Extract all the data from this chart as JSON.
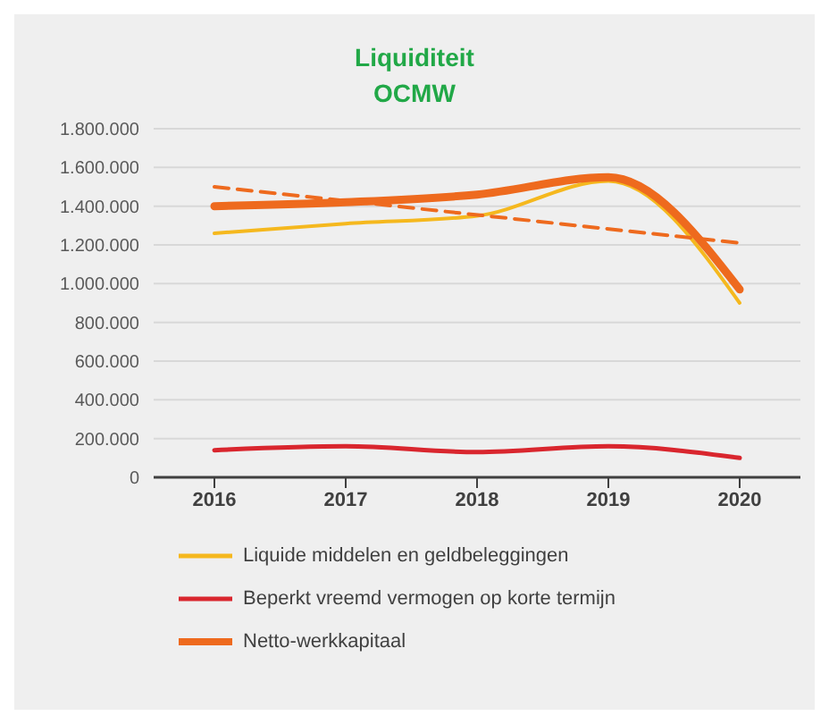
{
  "chart_data": {
    "type": "line",
    "title": "Liquiditeit OCMW",
    "categories": [
      "2016",
      "2017",
      "2018",
      "2019",
      "2020"
    ],
    "series": [
      {
        "name": "Liquide middelen en geldbeleggingen",
        "color": "#f5b81e",
        "values": [
          1260000,
          1310000,
          1350000,
          1530000,
          900000
        ]
      },
      {
        "name": "Beperkt vreemd vermogen op korte termijn",
        "color": "#d9262e",
        "values": [
          140000,
          160000,
          130000,
          160000,
          100000
        ]
      },
      {
        "name": "Netto-werkkapitaal",
        "color": "#ee6a1e",
        "values": [
          1400000,
          1420000,
          1460000,
          1550000,
          970000
        ]
      },
      {
        "type": "line",
        "color": "#ee6a1e",
        "line_style": "dashed",
        "values": [
          1500000,
          null,
          null,
          null,
          1210000
        ]
      }
    ],
    "ylim": [
      0,
      1800000
    ],
    "yticks": [
      {
        "value": 0,
        "label": "0"
      },
      {
        "value": 200000,
        "label": "200.000"
      },
      {
        "value": 400000,
        "label": "400.000"
      },
      {
        "value": 600000,
        "label": "600.000"
      },
      {
        "value": 800000,
        "label": "800.000"
      },
      {
        "value": 1000000,
        "label": "1.000.000"
      },
      {
        "value": 1200000,
        "label": "1.200.000"
      },
      {
        "value": 1400000,
        "label": "1.400.000"
      },
      {
        "value": 1600000,
        "label": "1.600.000"
      },
      {
        "value": 1800000,
        "label": "1.800.000"
      }
    ],
    "grid": "y",
    "legend": "bottom",
    "marker": "none",
    "line_style": "solid"
  }
}
